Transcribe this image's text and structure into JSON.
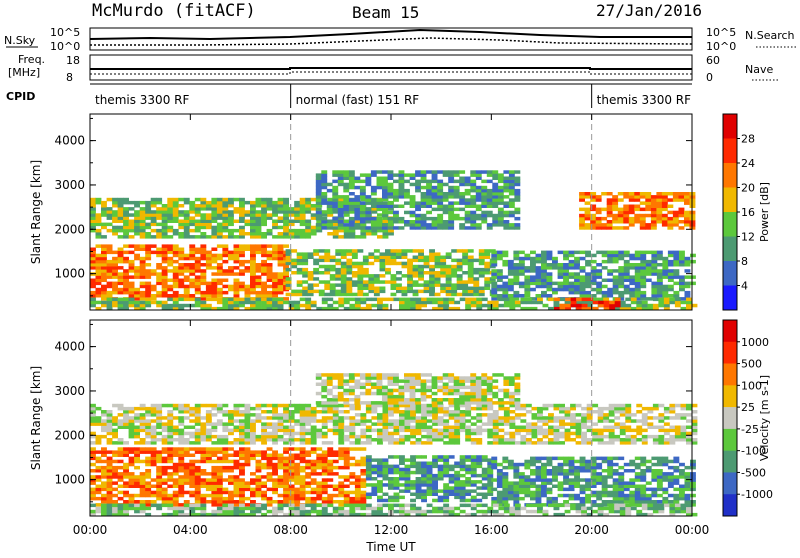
{
  "header": {
    "title": "McMurdo (fitACF)",
    "beam": "Beam 15",
    "date": "27/Jan/2016"
  },
  "top_panel": {
    "left_label": "N.Sky",
    "right_label": "N.Search",
    "left_ticks": [
      "10^5",
      "10^0"
    ],
    "right_ticks": [
      "10^5",
      "10^0"
    ]
  },
  "freq_panel": {
    "left_label_1": "Freq.",
    "left_label_2": "[MHz]",
    "right_label": "Nave",
    "left_ticks": [
      "18",
      "8"
    ],
    "right_ticks": [
      "60",
      "0"
    ]
  },
  "cpid_panel": {
    "label": "CPID",
    "segments": [
      {
        "name": "themis 3300 RF",
        "start": 0,
        "end": 8
      },
      {
        "name": "normal (fast) 151 RF",
        "start": 8,
        "end": 20
      },
      {
        "name": "themis 3300 RF",
        "start": 20,
        "end": 24
      }
    ]
  },
  "x_axis": {
    "label": "Time UT",
    "ticks": [
      "00:00",
      "04:00",
      "08:00",
      "12:00",
      "16:00",
      "20:00",
      "00:00"
    ]
  },
  "chart_data": [
    {
      "type": "heatmap",
      "quantity": "Power",
      "ylabel": "Slant Range [km]",
      "yticks": [
        "1000",
        "2000",
        "3000",
        "4000"
      ],
      "ylim": [
        180,
        4600
      ],
      "xlim": [
        0,
        24
      ],
      "colorbar_label": "Power [dB]",
      "colorbar_ticks": [
        "4",
        "8",
        "12",
        "16",
        "20",
        "24",
        "28"
      ],
      "colorbar_colors": [
        "#1a1aff",
        "#3d68c4",
        "#4c9a72",
        "#5cc83c",
        "#f0b800",
        "#ff7700",
        "#ff2a00",
        "#e00000"
      ],
      "bands": [
        {
          "t0": 0.0,
          "t1": 7.8,
          "r0": 400,
          "r1": 1600,
          "level": 5
        },
        {
          "t0": 7.8,
          "t1": 16.0,
          "r0": 500,
          "r1": 1500,
          "level": 3
        },
        {
          "t0": 0.0,
          "t1": 12.0,
          "r0": 1800,
          "r1": 2700,
          "level": 3
        },
        {
          "t0": 19.5,
          "t1": 24.0,
          "r0": 2000,
          "r1": 2800,
          "level": 5
        },
        {
          "t0": 9.0,
          "t1": 17.0,
          "r0": 2000,
          "r1": 3300,
          "level": 2
        },
        {
          "t0": 16.0,
          "t1": 24.0,
          "r0": 400,
          "r1": 1500,
          "level": 2
        },
        {
          "t0": 0.0,
          "t1": 24.0,
          "r0": 180,
          "r1": 400,
          "level": 3
        },
        {
          "t0": 18.5,
          "t1": 21.0,
          "r0": 180,
          "r1": 400,
          "level": 6
        }
      ]
    },
    {
      "type": "heatmap",
      "quantity": "Velocity",
      "ylabel": "Slant Range [km]",
      "yticks": [
        "1000",
        "2000",
        "3000",
        "4000"
      ],
      "ylim": [
        180,
        4600
      ],
      "xlim": [
        0,
        24
      ],
      "colorbar_label": "Velocity [m s-1]",
      "colorbar_ticks": [
        "1000",
        "500",
        "100",
        "25",
        "-25",
        "-100",
        "-500",
        "-1000"
      ],
      "colorbar_colors": [
        "#2030c8",
        "#3d68c4",
        "#4c9a72",
        "#5cc83c",
        "#c8c8c0",
        "#f0b800",
        "#ff7700",
        "#ff2a00",
        "#e00000"
      ],
      "bands": [
        {
          "t0": 0.0,
          "t1": 11.0,
          "r0": 400,
          "r1": 1700,
          "level": 6
        },
        {
          "t0": 11.0,
          "t1": 16.0,
          "r0": 500,
          "r1": 1500,
          "level": 2
        },
        {
          "t0": 0.0,
          "t1": 24.0,
          "r0": 1800,
          "r1": 2700,
          "level": 4
        },
        {
          "t0": 9.0,
          "t1": 17.0,
          "r0": 2700,
          "r1": 3400,
          "level": 4
        },
        {
          "t0": 16.0,
          "t1": 24.0,
          "r0": 400,
          "r1": 1500,
          "level": 2
        },
        {
          "t0": 0.0,
          "t1": 24.0,
          "r0": 180,
          "r1": 400,
          "level": 3
        }
      ]
    }
  ]
}
